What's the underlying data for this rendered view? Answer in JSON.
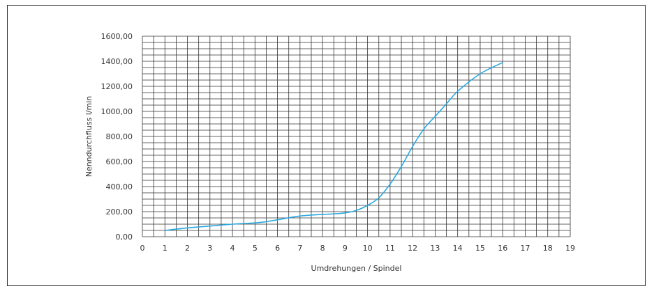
{
  "chart_data": {
    "type": "line",
    "xlabel": "Umdrehungen / Spindel",
    "ylabel": "Nenndurchfluss l/min",
    "xlim": [
      0,
      19
    ],
    "ylim": [
      0,
      1600
    ],
    "x_ticks": [
      "0",
      "1",
      "2",
      "3",
      "4",
      "5",
      "6",
      "7",
      "8",
      "9",
      "10",
      "11",
      "12",
      "13",
      "14",
      "15",
      "16",
      "17",
      "18",
      "19"
    ],
    "y_ticks": [
      "0,00",
      "200,00",
      "400,00",
      "600,00",
      "800,00",
      "1000,00",
      "1200,00",
      "1400,00",
      "1600,00"
    ],
    "grid": true,
    "series": [
      {
        "color": "#29a8e0",
        "x": [
          1,
          2,
          3,
          4,
          5,
          5.5,
          6,
          7,
          8,
          8.5,
          9,
          9.5,
          10,
          10.5,
          11,
          11.5,
          12,
          12.5,
          13,
          13.5,
          14,
          15,
          16
        ],
        "y": [
          50,
          70,
          85,
          100,
          110,
          120,
          135,
          165,
          178,
          182,
          190,
          210,
          250,
          310,
          420,
          560,
          720,
          860,
          960,
          1060,
          1160,
          1300,
          1390
        ]
      }
    ]
  }
}
